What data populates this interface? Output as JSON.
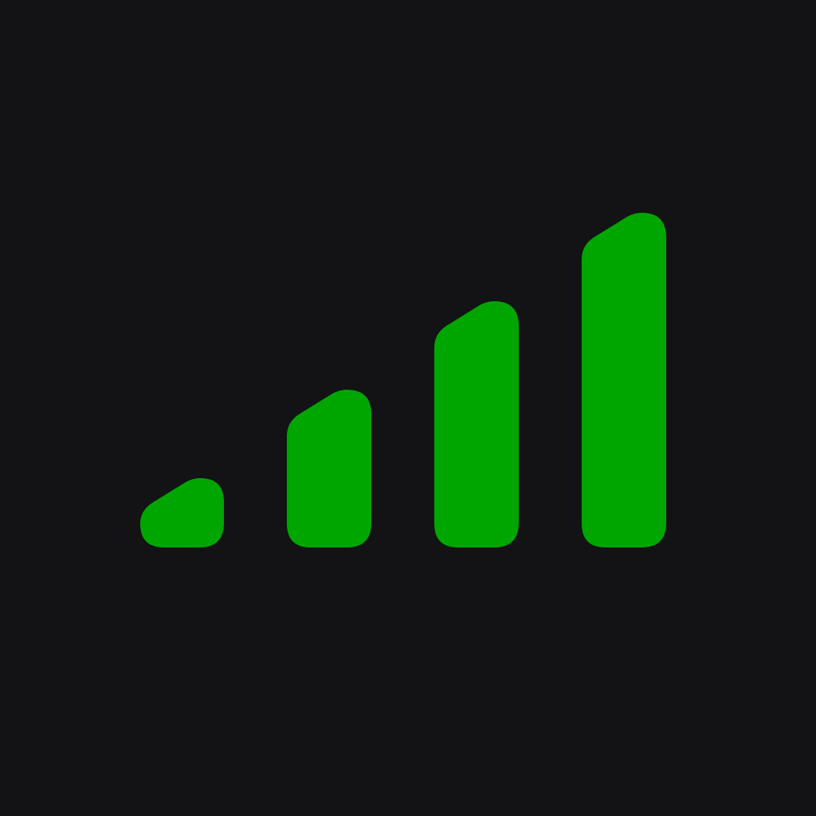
{
  "icon": {
    "name": "signal-strength-icon",
    "colors": {
      "background": "#131315",
      "bar": "#00A600"
    },
    "signal": {
      "bars_total": 4,
      "bars_active": 4
    }
  }
}
